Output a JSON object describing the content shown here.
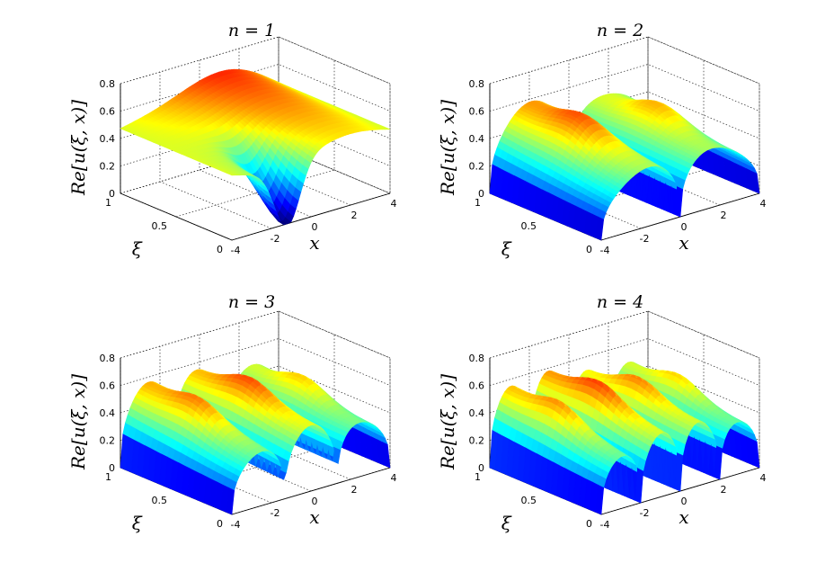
{
  "chart_data": [
    {
      "type": "surface",
      "title": "n = 1",
      "n": 1,
      "zlabel": "Re[u(ξ, x)]",
      "xlabel": "x",
      "ylabel": "ξ",
      "xlim": [
        -4,
        4
      ],
      "ylim": [
        0,
        1
      ],
      "zlim": [
        0,
        0.8
      ],
      "xticks": [
        "-4",
        "-2",
        "0",
        "2",
        "4"
      ],
      "yticks": [
        "0",
        "0.5",
        "1"
      ],
      "zticks": [
        "0",
        "0.2",
        "0.4",
        "0.6",
        "0.8"
      ],
      "colormap": "jet",
      "grid": true
    },
    {
      "type": "surface",
      "title": "n = 2",
      "n": 2,
      "zlabel": "Re[u(ξ, x)]",
      "xlabel": "x",
      "ylabel": "ξ",
      "xlim": [
        -4,
        4
      ],
      "ylim": [
        0,
        1
      ],
      "zlim": [
        0,
        0.8
      ],
      "xticks": [
        "-4",
        "-2",
        "0",
        "2",
        "4"
      ],
      "yticks": [
        "0",
        "0.5",
        "1"
      ],
      "zticks": [
        "0",
        "0.2",
        "0.4",
        "0.6",
        "0.8"
      ],
      "colormap": "jet",
      "grid": true
    },
    {
      "type": "surface",
      "title": "n = 3",
      "n": 3,
      "zlabel": "Re[u(ξ, x)]",
      "xlabel": "x",
      "ylabel": "ξ",
      "xlim": [
        -4,
        4
      ],
      "ylim": [
        0,
        1
      ],
      "zlim": [
        0,
        0.8
      ],
      "xticks": [
        "-4",
        "-2",
        "0",
        "2",
        "4"
      ],
      "yticks": [
        "0",
        "0.5",
        "1"
      ],
      "zticks": [
        "0",
        "0.2",
        "0.4",
        "0.6",
        "0.8"
      ],
      "colormap": "jet",
      "grid": true
    },
    {
      "type": "surface",
      "title": "n = 4",
      "n": 4,
      "zlabel": "Re[u(ξ, x)]",
      "xlabel": "x",
      "ylabel": "ξ",
      "xlim": [
        -4,
        4
      ],
      "ylim": [
        0,
        1
      ],
      "zlim": [
        0,
        0.8
      ],
      "xticks": [
        "-4",
        "-2",
        "0",
        "2",
        "4"
      ],
      "yticks": [
        "0",
        "0.5",
        "1"
      ],
      "zticks": [
        "0",
        "0.2",
        "0.4",
        "0.6",
        "0.8"
      ],
      "colormap": "jet",
      "grid": true
    }
  ]
}
